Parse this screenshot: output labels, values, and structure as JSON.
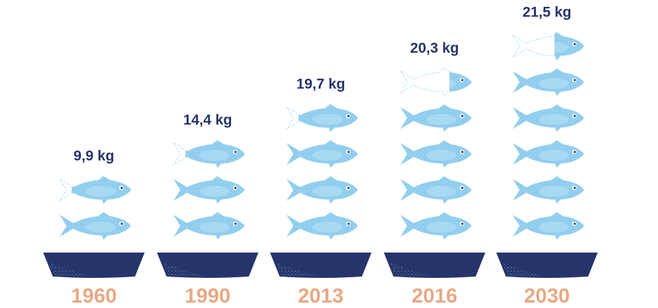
{
  "colors": {
    "fish": "#8fcdee",
    "fish_light": "#c4e6f7",
    "bowl": "#26346b",
    "value_label": "#26346b",
    "year_label": "#e8a884",
    "background": "#ffffff"
  },
  "chart_data": {
    "type": "bar",
    "pictogram_unit": "fish",
    "value_unit": "kg",
    "categories": [
      "1960",
      "1990",
      "2013",
      "2016",
      "2030"
    ],
    "values": [
      9.9,
      14.4,
      19.7,
      20.3,
      21.5
    ],
    "fish_shown": [
      1.8,
      2.8,
      3.8,
      4.3,
      5.4
    ],
    "value_labels": [
      "9,9 kg",
      "14,4 kg",
      "19,7 kg",
      "20,3 kg",
      "21,5 kg"
    ],
    "title": "",
    "xlabel": "",
    "ylabel": ""
  }
}
